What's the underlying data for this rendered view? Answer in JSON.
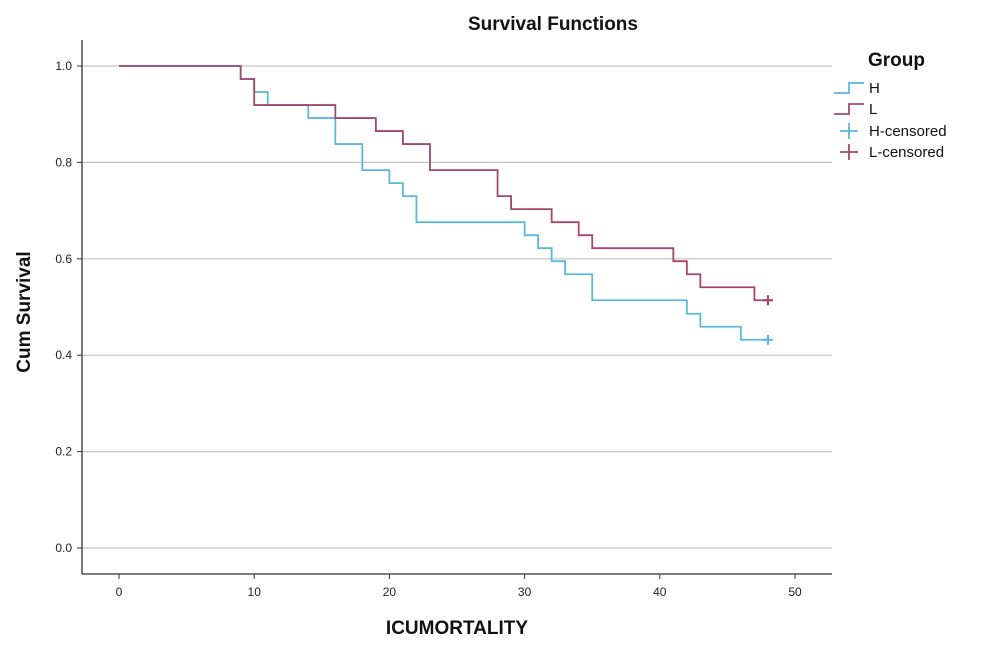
{
  "chart_data": {
    "type": "line",
    "subtype": "kaplan-meier-step",
    "title": "Survival Functions",
    "xlabel": "ICUMORTALITY",
    "ylabel": "Cum Survival",
    "xlim": [
      0,
      50
    ],
    "ylim": [
      0.0,
      1.0
    ],
    "xticks": [
      "0",
      "10",
      "20",
      "30",
      "40",
      "50"
    ],
    "yticks": [
      "0.0",
      "0.2",
      "0.4",
      "0.6",
      "0.8",
      "1.0"
    ],
    "xtick_values": [
      0,
      10,
      20,
      30,
      40,
      50
    ],
    "ytick_values": [
      0.0,
      0.2,
      0.4,
      0.6,
      0.8,
      1.0
    ],
    "grid": "horizontal",
    "legend": {
      "title": "Group",
      "position": "top-right",
      "entries": [
        "H",
        "L",
        "H-censored",
        "L-censored"
      ]
    },
    "series": [
      {
        "name": "H",
        "color": "#5BB8DC",
        "steps": [
          [
            0,
            1.0
          ],
          [
            9,
            0.973
          ],
          [
            10,
            0.946
          ],
          [
            11,
            0.919
          ],
          [
            14,
            0.892
          ],
          [
            16,
            0.838
          ],
          [
            18,
            0.784
          ],
          [
            20,
            0.757
          ],
          [
            21,
            0.73
          ],
          [
            22,
            0.676
          ],
          [
            30,
            0.649
          ],
          [
            31,
            0.622
          ],
          [
            32,
            0.595
          ],
          [
            33,
            0.568
          ],
          [
            35,
            0.514
          ],
          [
            42,
            0.486
          ],
          [
            43,
            0.459
          ],
          [
            46,
            0.432
          ],
          [
            48,
            0.432
          ]
        ],
        "censored": [
          [
            48,
            0.432
          ]
        ]
      },
      {
        "name": "L",
        "color": "#A3476E",
        "steps": [
          [
            0,
            1.0
          ],
          [
            9,
            0.973
          ],
          [
            10,
            0.919
          ],
          [
            16,
            0.892
          ],
          [
            19,
            0.865
          ],
          [
            21,
            0.838
          ],
          [
            23,
            0.784
          ],
          [
            28,
            0.73
          ],
          [
            29,
            0.703
          ],
          [
            32,
            0.676
          ],
          [
            34,
            0.649
          ],
          [
            35,
            0.622
          ],
          [
            41,
            0.595
          ],
          [
            42,
            0.568
          ],
          [
            43,
            0.541
          ],
          [
            47,
            0.514
          ],
          [
            48,
            0.514
          ]
        ],
        "censored": [
          [
            48,
            0.514
          ]
        ]
      }
    ]
  }
}
